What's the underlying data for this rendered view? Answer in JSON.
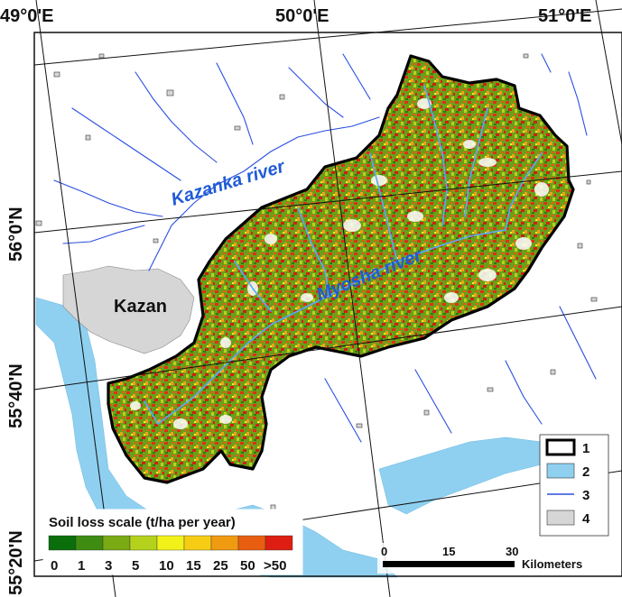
{
  "coords": {
    "top": [
      "49°0'E",
      "50°0'E",
      "51°0'E"
    ],
    "left": [
      "56°0'N",
      "55°40'N",
      "55°20'N"
    ]
  },
  "labels": {
    "kazanka": "Kazanka river",
    "myosha": "Myosha river",
    "kazan": "Kazan"
  },
  "soil_legend": {
    "title": "Soil loss scale (t/ha per year)",
    "classes": [
      "0",
      "1",
      "3",
      "5",
      "10",
      "15",
      "25",
      "50",
      ">50"
    ],
    "colors": [
      "#0a6e0a",
      "#3f8c12",
      "#7aaa14",
      "#b4d21c",
      "#f2f21a",
      "#f6cd14",
      "#f09a12",
      "#e85e10",
      "#de1e12"
    ]
  },
  "symbol_legend": {
    "items": [
      "1",
      "2",
      "3",
      "4"
    ]
  },
  "scale_bar": {
    "ticks": [
      "0",
      "15",
      "30"
    ],
    "unit": "Kilometers"
  },
  "colors": {
    "water": "#8fd0f0",
    "river": "#2a4ee0",
    "urban": "#d6d6d6",
    "boundary": "#000000"
  }
}
